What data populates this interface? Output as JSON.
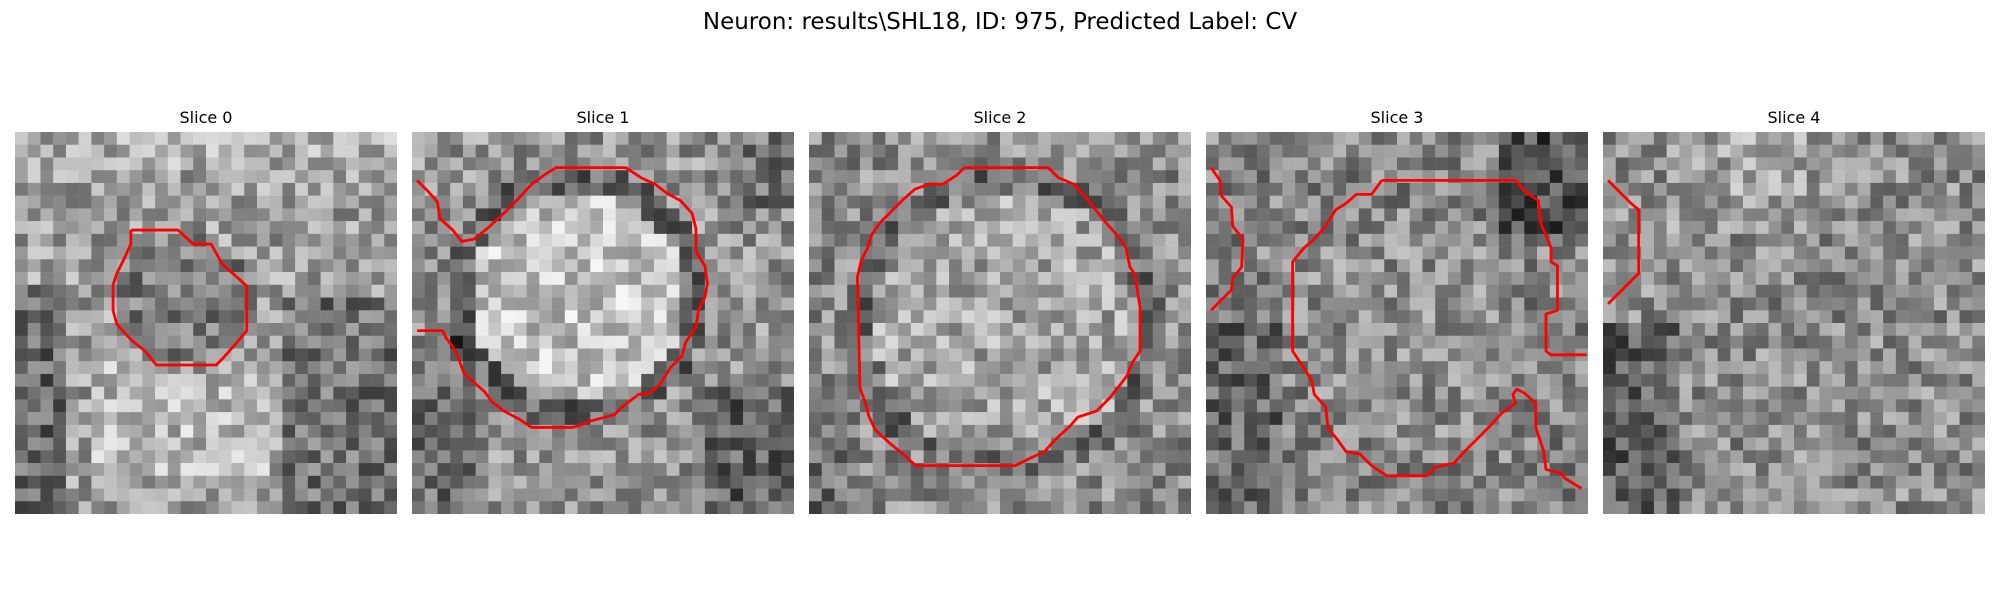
{
  "figure": {
    "title": "Neuron: results\\SHL18, ID: 975, Predicted Label: CV",
    "contour_color": "#ff0000"
  },
  "panels": [
    {
      "title": "Slice 0"
    },
    {
      "title": "Slice 1"
    },
    {
      "title": "Slice 2"
    },
    {
      "title": "Slice 3"
    },
    {
      "title": "Slice 4"
    }
  ]
}
